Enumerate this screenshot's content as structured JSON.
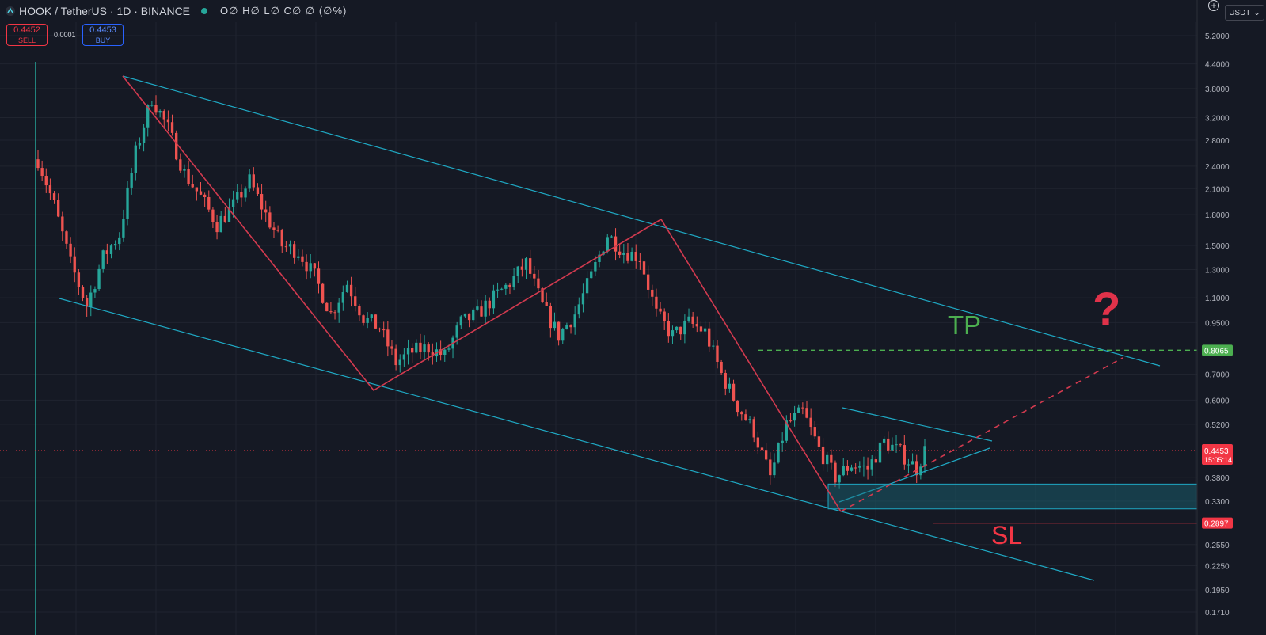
{
  "header": {
    "symbol": "HOOK / TetherUS · 1D · BINANCE",
    "ohlc": "O∅ H∅ L∅ C∅ ∅ (∅%)",
    "sell_price": "0.4452",
    "sell_label": "SELL",
    "spread": "0.0001",
    "buy_price": "0.4453",
    "buy_label": "BUY",
    "currency": "USDT",
    "currency_caret": "⌄",
    "plus": "+"
  },
  "annotations": {
    "tp": "TP",
    "sl": "SL",
    "question": "?"
  },
  "colors": {
    "background": "#151924",
    "up": "#26a69a",
    "down": "#ef5350",
    "channel": "#1fa9c4",
    "zigzag": "#d23a4f",
    "tp": "#4caf50",
    "sl": "#f23645"
  },
  "chart_data": {
    "type": "candlestick",
    "title": "HOOK / TetherUS · 1D · BINANCE",
    "scale": "log",
    "ylim": [
      0.16,
      6.0
    ],
    "y_ticks": [
      "5.2000",
      "4.4000",
      "3.8000",
      "3.2000",
      "2.8000",
      "2.4000",
      "2.1000",
      "1.8000",
      "1.5000",
      "1.3000",
      "1.1000",
      "0.9500",
      "0.8065",
      "0.7000",
      "0.6000",
      "0.5200",
      "0.4453",
      "0.3800",
      "0.3300",
      "0.2897",
      "0.2550",
      "0.2250",
      "0.1950",
      "0.1710"
    ],
    "last_price": "0.4453",
    "countdown": "15:05:14",
    "tp_level": "0.8065",
    "sl_level": "0.2897",
    "zone": [
      0.315,
      0.365
    ],
    "price_path": [
      [
        0,
        2.5
      ],
      [
        4,
        1.9
      ],
      [
        8,
        1.35
      ],
      [
        12,
        1.05
      ],
      [
        16,
        1.4
      ],
      [
        20,
        1.6
      ],
      [
        24,
        2.6
      ],
      [
        28,
        3.6
      ],
      [
        32,
        3.0
      ],
      [
        36,
        2.3
      ],
      [
        40,
        2.0
      ],
      [
        44,
        1.7
      ],
      [
        48,
        1.9
      ],
      [
        52,
        2.2
      ],
      [
        56,
        1.8
      ],
      [
        60,
        1.5
      ],
      [
        64,
        1.45
      ],
      [
        68,
        1.25
      ],
      [
        72,
        1.0
      ],
      [
        76,
        1.2
      ],
      [
        80,
        0.98
      ],
      [
        84,
        0.92
      ],
      [
        88,
        0.75
      ],
      [
        92,
        0.8
      ],
      [
        96,
        0.82
      ],
      [
        100,
        0.78
      ],
      [
        104,
        0.95
      ],
      [
        108,
        1.0
      ],
      [
        112,
        1.1
      ],
      [
        116,
        1.2
      ],
      [
        120,
        1.35
      ],
      [
        124,
        1.05
      ],
      [
        128,
        0.88
      ],
      [
        132,
        1.0
      ],
      [
        136,
        1.25
      ],
      [
        140,
        1.6
      ],
      [
        144,
        1.45
      ],
      [
        148,
        1.4
      ],
      [
        152,
        1.0
      ],
      [
        156,
        0.88
      ],
      [
        160,
        0.95
      ],
      [
        164,
        0.9
      ],
      [
        168,
        0.7
      ],
      [
        172,
        0.58
      ],
      [
        176,
        0.5
      ],
      [
        180,
        0.38
      ],
      [
        184,
        0.52
      ],
      [
        188,
        0.56
      ],
      [
        192,
        0.45
      ],
      [
        196,
        0.38
      ],
      [
        200,
        0.41
      ],
      [
        204,
        0.4
      ],
      [
        208,
        0.47
      ],
      [
        212,
        0.44
      ],
      [
        216,
        0.4
      ],
      [
        218,
        0.4453
      ]
    ]
  }
}
